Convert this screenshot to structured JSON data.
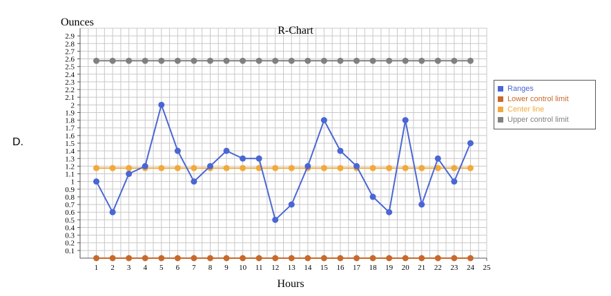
{
  "option_label": "D.",
  "chart_data": {
    "type": "line",
    "title": "R-Chart",
    "xlabel": "Hours",
    "ylabel": "Ounces",
    "xlim": [
      0,
      25
    ],
    "ylim": [
      0,
      3
    ],
    "x_ticks": [
      1,
      2,
      3,
      4,
      5,
      6,
      7,
      8,
      9,
      10,
      11,
      12,
      13,
      14,
      15,
      16,
      17,
      18,
      19,
      20,
      21,
      22,
      23,
      24,
      25
    ],
    "y_ticks": [
      "0.1",
      "0.2",
      "0.3",
      "0.4",
      "0.5",
      "0.6",
      "0.7",
      "0.8",
      "0.9",
      "1",
      "1.1",
      "1.2",
      "1.3",
      "1.4",
      "1.5",
      "1.6",
      "1.7",
      "1.8",
      "1.9",
      "2",
      "2.1",
      "2.2",
      "2.3",
      "2.4",
      "2.5",
      "2.6",
      "2.7",
      "2.8",
      "2.9"
    ],
    "x": [
      1,
      2,
      3,
      4,
      5,
      6,
      7,
      8,
      9,
      10,
      11,
      12,
      13,
      14,
      15,
      16,
      17,
      18,
      19,
      20,
      21,
      22,
      23,
      24
    ],
    "grid": true,
    "legend_position": "right",
    "series": [
      {
        "name": "Ranges",
        "color": "#4a66d4",
        "values": [
          1.0,
          0.6,
          1.1,
          1.2,
          2.0,
          1.4,
          1.0,
          1.2,
          1.4,
          1.3,
          1.3,
          0.5,
          0.7,
          1.2,
          1.8,
          1.4,
          1.2,
          0.8,
          0.6,
          1.8,
          0.7,
          1.3,
          1.0,
          1.5
        ]
      },
      {
        "name": "Lower control limit",
        "color": "#c8692c",
        "values": [
          0,
          0,
          0,
          0,
          0,
          0,
          0,
          0,
          0,
          0,
          0,
          0,
          0,
          0,
          0,
          0,
          0,
          0,
          0,
          0,
          0,
          0,
          0,
          0
        ]
      },
      {
        "name": "Center line",
        "color": "#f2a93b",
        "values": [
          1.175,
          1.175,
          1.175,
          1.175,
          1.175,
          1.175,
          1.175,
          1.175,
          1.175,
          1.175,
          1.175,
          1.175,
          1.175,
          1.175,
          1.175,
          1.175,
          1.175,
          1.175,
          1.175,
          1.175,
          1.175,
          1.175,
          1.175,
          1.175
        ]
      },
      {
        "name": "Upper control limit",
        "color": "#808080",
        "values": [
          2.575,
          2.575,
          2.575,
          2.575,
          2.575,
          2.575,
          2.575,
          2.575,
          2.575,
          2.575,
          2.575,
          2.575,
          2.575,
          2.575,
          2.575,
          2.575,
          2.575,
          2.575,
          2.575,
          2.575,
          2.575,
          2.575,
          2.575,
          2.575
        ]
      }
    ]
  }
}
